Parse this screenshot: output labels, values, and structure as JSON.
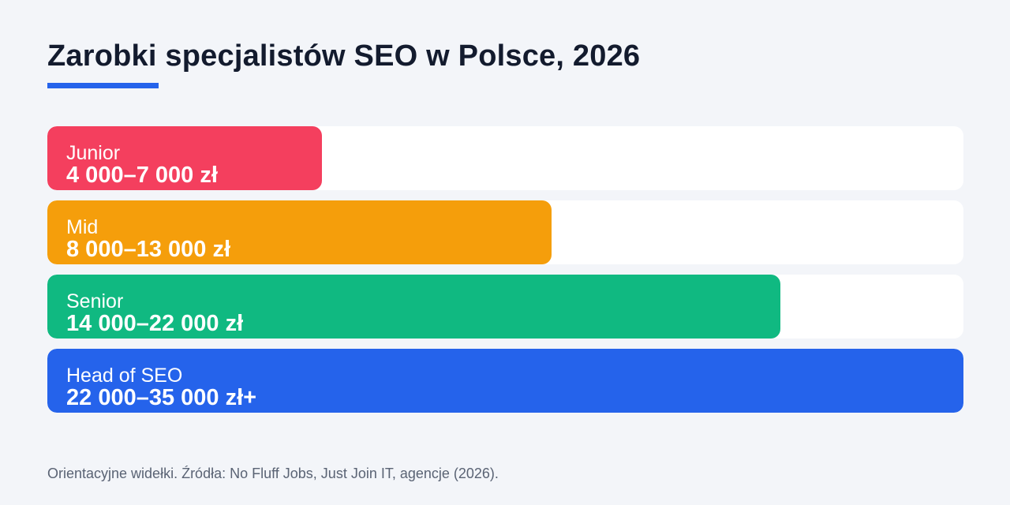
{
  "chart_data": {
    "type": "bar",
    "orientation": "horizontal",
    "title": "Zarobki specjalistów SEO w Polsce, 2026",
    "categories": [
      "Junior",
      "Mid",
      "Senior",
      "Head of SEO"
    ],
    "value_labels": [
      "4 000–7 000 zł",
      "8 000–13 000 zł",
      "14 000–22 000 zł",
      "22 000–35 000 zł+"
    ],
    "values": [
      0.3,
      0.55,
      0.8,
      1.0
    ],
    "colors": [
      "#f43f5e",
      "#f59e0b",
      "#10b981",
      "#2563eb"
    ],
    "track_color": "#ffffff",
    "accent": "#2563eb",
    "grid": false,
    "legend": "none"
  },
  "footnote": "Orientacyjne widełki. Źródła: No Fluff Jobs, Just Join IT, agencje (2026)."
}
